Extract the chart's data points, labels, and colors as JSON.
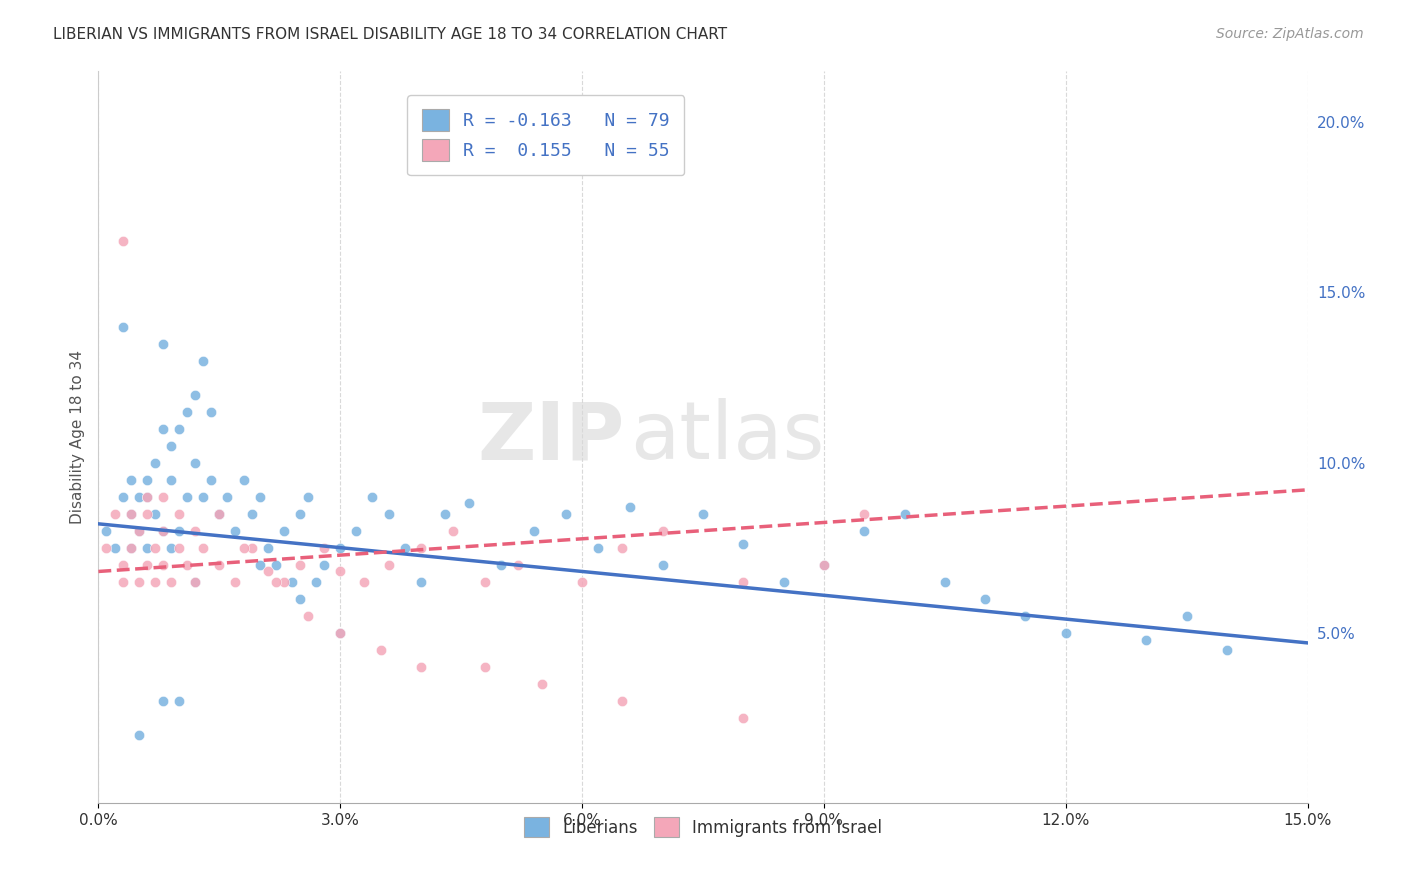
{
  "title": "LIBERIAN VS IMMIGRANTS FROM ISRAEL DISABILITY AGE 18 TO 34 CORRELATION CHART",
  "source": "Source: ZipAtlas.com",
  "ylabel": "Disability Age 18 to 34",
  "xlim": [
    0.0,
    0.15
  ],
  "ylim": [
    0.0,
    0.215
  ],
  "xticks": [
    0.0,
    0.03,
    0.06,
    0.09,
    0.12,
    0.15
  ],
  "yticks_right": [
    0.05,
    0.1,
    0.15,
    0.2
  ],
  "ytick_labels_right": [
    "5.0%",
    "10.0%",
    "15.0%",
    "20.0%"
  ],
  "xtick_labels": [
    "0.0%",
    "3.0%",
    "6.0%",
    "9.0%",
    "12.0%",
    "15.0%"
  ],
  "color_blue": "#7ab3e0",
  "color_pink": "#f4a7b9",
  "color_blue_dark": "#4472c4",
  "color_pink_dark": "#e8607a",
  "legend_blue_label": "R = -0.163   N = 79",
  "legend_pink_label": "R =  0.155   N = 55",
  "bottom_legend_blue": "Liberians",
  "bottom_legend_pink": "Immigrants from Israel",
  "watermark_zip": "ZIP",
  "watermark_atlas": "atlas",
  "R_blue": -0.163,
  "N_blue": 79,
  "R_pink": 0.155,
  "N_pink": 55,
  "blue_trend_x": [
    0.0,
    0.15
  ],
  "blue_trend_y": [
    0.082,
    0.047
  ],
  "pink_trend_x": [
    0.0,
    0.15
  ],
  "pink_trend_y": [
    0.068,
    0.092
  ],
  "blue_scatter_x": [
    0.001,
    0.002,
    0.003,
    0.004,
    0.004,
    0.005,
    0.005,
    0.006,
    0.006,
    0.007,
    0.007,
    0.008,
    0.008,
    0.009,
    0.009,
    0.01,
    0.01,
    0.011,
    0.011,
    0.012,
    0.012,
    0.013,
    0.013,
    0.014,
    0.014,
    0.015,
    0.016,
    0.017,
    0.018,
    0.019,
    0.02,
    0.021,
    0.022,
    0.023,
    0.024,
    0.025,
    0.026,
    0.027,
    0.028,
    0.03,
    0.032,
    0.034,
    0.036,
    0.038,
    0.04,
    0.043,
    0.046,
    0.05,
    0.054,
    0.058,
    0.062,
    0.066,
    0.07,
    0.075,
    0.08,
    0.085,
    0.09,
    0.095,
    0.1,
    0.105,
    0.11,
    0.115,
    0.12,
    0.13,
    0.14,
    0.005,
    0.008,
    0.012,
    0.003,
    0.006,
    0.009,
    0.015,
    0.02,
    0.025,
    0.03,
    0.008,
    0.135,
    0.01,
    0.004
  ],
  "blue_scatter_y": [
    0.08,
    0.075,
    0.09,
    0.085,
    0.075,
    0.09,
    0.08,
    0.095,
    0.075,
    0.1,
    0.085,
    0.11,
    0.08,
    0.105,
    0.075,
    0.11,
    0.08,
    0.115,
    0.09,
    0.12,
    0.1,
    0.13,
    0.09,
    0.115,
    0.095,
    0.085,
    0.09,
    0.08,
    0.095,
    0.085,
    0.09,
    0.075,
    0.07,
    0.08,
    0.065,
    0.085,
    0.09,
    0.065,
    0.07,
    0.075,
    0.08,
    0.09,
    0.085,
    0.075,
    0.065,
    0.085,
    0.088,
    0.07,
    0.08,
    0.085,
    0.075,
    0.087,
    0.07,
    0.085,
    0.076,
    0.065,
    0.07,
    0.08,
    0.085,
    0.065,
    0.06,
    0.055,
    0.05,
    0.048,
    0.045,
    0.02,
    0.135,
    0.065,
    0.14,
    0.09,
    0.095,
    0.085,
    0.07,
    0.06,
    0.05,
    0.03,
    0.055,
    0.03,
    0.095
  ],
  "pink_scatter_x": [
    0.001,
    0.002,
    0.003,
    0.003,
    0.004,
    0.005,
    0.005,
    0.006,
    0.006,
    0.007,
    0.007,
    0.008,
    0.008,
    0.009,
    0.01,
    0.011,
    0.012,
    0.013,
    0.015,
    0.017,
    0.019,
    0.021,
    0.023,
    0.025,
    0.028,
    0.03,
    0.033,
    0.036,
    0.04,
    0.044,
    0.048,
    0.052,
    0.06,
    0.065,
    0.07,
    0.08,
    0.09,
    0.003,
    0.004,
    0.006,
    0.008,
    0.01,
    0.012,
    0.015,
    0.018,
    0.022,
    0.026,
    0.03,
    0.035,
    0.04,
    0.048,
    0.055,
    0.065,
    0.08,
    0.095
  ],
  "pink_scatter_y": [
    0.075,
    0.085,
    0.07,
    0.065,
    0.075,
    0.08,
    0.065,
    0.085,
    0.07,
    0.075,
    0.065,
    0.08,
    0.07,
    0.065,
    0.075,
    0.07,
    0.065,
    0.075,
    0.07,
    0.065,
    0.075,
    0.068,
    0.065,
    0.07,
    0.075,
    0.068,
    0.065,
    0.07,
    0.075,
    0.08,
    0.065,
    0.07,
    0.065,
    0.075,
    0.08,
    0.065,
    0.07,
    0.165,
    0.085,
    0.09,
    0.09,
    0.085,
    0.08,
    0.085,
    0.075,
    0.065,
    0.055,
    0.05,
    0.045,
    0.04,
    0.04,
    0.035,
    0.03,
    0.025,
    0.085
  ],
  "background_color": "#ffffff",
  "grid_color": "#d0d0d0"
}
